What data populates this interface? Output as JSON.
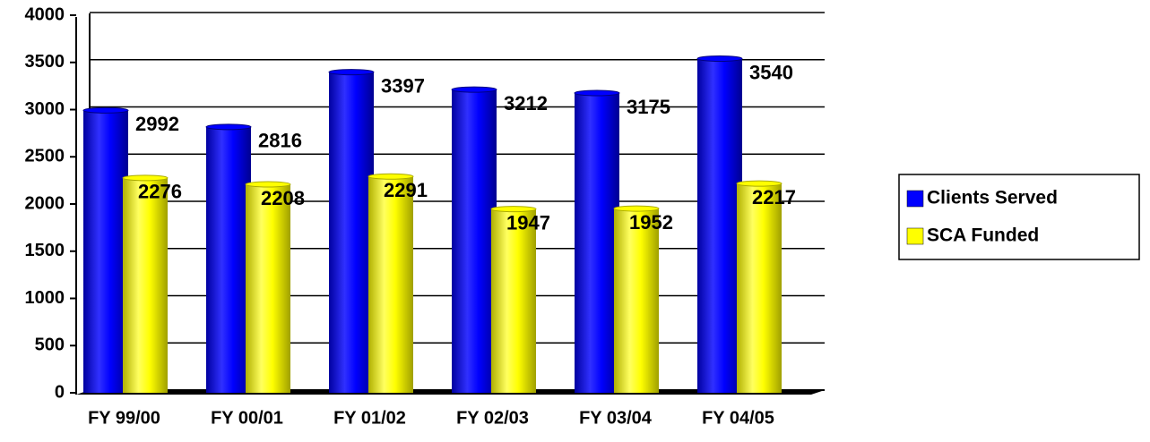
{
  "chart_data": {
    "type": "bar",
    "categories": [
      "FY 99/00",
      "FY 00/01",
      "FY 01/02",
      "FY 02/03",
      "FY 03/04",
      "FY 04/05"
    ],
    "series": [
      {
        "name": "Clients Served",
        "color": "#0000ff",
        "values": [
          2992,
          2816,
          3397,
          3212,
          3175,
          3540
        ]
      },
      {
        "name": "SCA Funded",
        "color": "#ffff00",
        "values": [
          2276,
          2208,
          2291,
          1947,
          1952,
          2217
        ]
      }
    ],
    "ylim": [
      0,
      4000
    ],
    "yticks": [
      0,
      500,
      1000,
      1500,
      2000,
      2500,
      3000,
      3500,
      4000
    ],
    "grid": true,
    "legend": "right"
  }
}
